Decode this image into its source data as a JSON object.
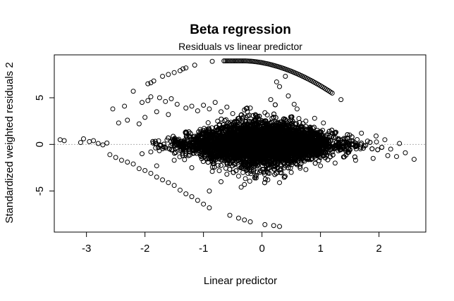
{
  "chart_data": {
    "type": "scatter",
    "title": "Beta regression",
    "subtitle": "Residuals vs linear predictor",
    "xlabel": "Linear predictor",
    "ylabel": "Standardized weighted residuals 2",
    "xlim": [
      -3.55,
      2.8
    ],
    "ylim": [
      -9.4,
      9.6
    ],
    "x_ticks": [
      -3,
      -2,
      -1,
      0,
      1,
      2
    ],
    "x_tick_labels": [
      "-3",
      "-2",
      "-1",
      "0",
      "1",
      "2"
    ],
    "y_ticks": [
      -5,
      0,
      5
    ],
    "y_tick_labels": [
      "-5",
      "0",
      "5"
    ],
    "reference_line": {
      "y": 0,
      "style": "dotted",
      "color": "#b0b0b0"
    },
    "marker": "open-circle",
    "grid": false,
    "legend": "none",
    "series": [
      {
        "points": [
          [
            -3.45,
            0.5
          ],
          [
            -3.38,
            0.4
          ],
          [
            -3.1,
            0.2
          ],
          [
            -3.05,
            0.6
          ],
          [
            -2.95,
            0.3
          ],
          [
            -2.88,
            0.4
          ],
          [
            -2.8,
            0.1
          ],
          [
            -2.72,
            -0.05
          ],
          [
            -2.65,
            0.15
          ],
          [
            -2.55,
            3.8
          ],
          [
            -2.35,
            4.1
          ],
          [
            -2.2,
            5.7
          ],
          [
            -2.05,
            4.5
          ],
          [
            -1.95,
            4.7
          ],
          [
            -1.9,
            5.1
          ],
          [
            -2.45,
            2.3
          ],
          [
            -2.3,
            2.6
          ],
          [
            -2.1,
            2.2
          ],
          [
            -2.0,
            2.9
          ],
          [
            -1.95,
            6.5
          ],
          [
            -1.9,
            6.6
          ],
          [
            -1.85,
            6.8
          ],
          [
            -1.7,
            7.3
          ],
          [
            -1.6,
            7.5
          ],
          [
            -1.5,
            7.7
          ],
          [
            -1.4,
            7.9
          ],
          [
            -1.35,
            8.1
          ],
          [
            -1.3,
            8.2
          ],
          [
            -1.15,
            8.5
          ],
          [
            -0.85,
            8.9
          ],
          [
            -1.75,
            5.0
          ],
          [
            -1.65,
            4.6
          ],
          [
            -1.55,
            4.9
          ],
          [
            -1.8,
            3.5
          ],
          [
            -1.6,
            3.2
          ],
          [
            -1.45,
            4.3
          ],
          [
            -1.3,
            3.9
          ],
          [
            -1.2,
            4.1
          ],
          [
            -1.1,
            3.6
          ],
          [
            -1.0,
            4.2
          ],
          [
            -0.9,
            3.8
          ],
          [
            -0.8,
            4.5
          ],
          [
            -0.7,
            3.5
          ],
          [
            -0.6,
            4.0
          ],
          [
            -0.5,
            3.3
          ],
          [
            -0.4,
            2.8
          ],
          [
            -0.3,
            3.7
          ],
          [
            -0.2,
            3.9
          ],
          [
            -0.1,
            3.1
          ],
          [
            0.05,
            3.4
          ],
          [
            0.15,
            4.8
          ],
          [
            0.25,
            6.7
          ],
          [
            0.3,
            6.2
          ],
          [
            0.45,
            5.2
          ],
          [
            0.55,
            4.3
          ],
          [
            0.4,
            7.3
          ],
          [
            0.6,
            3.8
          ],
          [
            0.9,
            2.8
          ],
          [
            1.05,
            2.3
          ],
          [
            1.35,
            4.8
          ],
          [
            0.75,
            2.5
          ],
          [
            0.5,
            2.7
          ],
          [
            0.2,
            2.9
          ],
          [
            -2.6,
            -1.1
          ],
          [
            -2.5,
            -1.4
          ],
          [
            -2.4,
            -1.7
          ],
          [
            -2.3,
            -1.9
          ],
          [
            -2.2,
            -2.1
          ],
          [
            -2.1,
            -2.6
          ],
          [
            -2.0,
            -2.8
          ],
          [
            -1.9,
            -3.1
          ],
          [
            -1.8,
            -3.5
          ],
          [
            -1.7,
            -3.8
          ],
          [
            -1.6,
            -4.1
          ],
          [
            -1.5,
            -4.4
          ],
          [
            -1.4,
            -4.9
          ],
          [
            -1.3,
            -5.3
          ],
          [
            -1.2,
            -5.6
          ],
          [
            -1.1,
            -6.0
          ],
          [
            -1.0,
            -6.4
          ],
          [
            -0.9,
            -6.8
          ],
          [
            -0.55,
            -7.6
          ],
          [
            -0.4,
            -7.9
          ],
          [
            -0.3,
            -8.1
          ],
          [
            -0.2,
            -8.3
          ],
          [
            0.05,
            -8.6
          ],
          [
            0.2,
            -8.7
          ],
          [
            0.3,
            -8.8
          ],
          [
            -1.9,
            -0.8
          ],
          [
            -2.05,
            -1.0
          ],
          [
            -1.8,
            -2.3
          ],
          [
            -1.5,
            -1.7
          ],
          [
            -1.2,
            -2.5
          ],
          [
            -0.85,
            -2.9
          ],
          [
            -0.6,
            -3.2
          ],
          [
            -0.4,
            -3.4
          ],
          [
            -0.7,
            -4.0
          ],
          [
            -0.9,
            -5.0
          ],
          [
            -0.3,
            -4.3
          ],
          [
            -0.1,
            -3.6
          ],
          [
            0.1,
            -3.8
          ],
          [
            0.3,
            -4.1
          ],
          [
            0.5,
            -3.0
          ],
          [
            0.75,
            -2.7
          ],
          [
            1.0,
            -2.3
          ],
          [
            1.25,
            -2.0
          ],
          [
            1.6,
            -1.7
          ],
          [
            1.9,
            -1.5
          ],
          [
            2.15,
            -1.2
          ],
          [
            2.3,
            -1.3
          ],
          [
            2.45,
            -0.9
          ],
          [
            2.6,
            -1.6
          ],
          [
            2.2,
            -0.5
          ],
          [
            2.35,
            0.1
          ],
          [
            2.1,
            0.5
          ],
          [
            1.95,
            0.9
          ],
          [
            1.7,
            1.2
          ],
          [
            1.5,
            1.0
          ]
        ]
      }
    ],
    "arc_segment": {
      "x_start": -0.65,
      "x_end": 1.2,
      "y_peak": 8.95,
      "y_end": 5.5
    },
    "dense_cloud": {
      "x_min": -2.0,
      "x_max": 2.2,
      "center_x": 0.0,
      "max_spread": 2.3
    }
  }
}
